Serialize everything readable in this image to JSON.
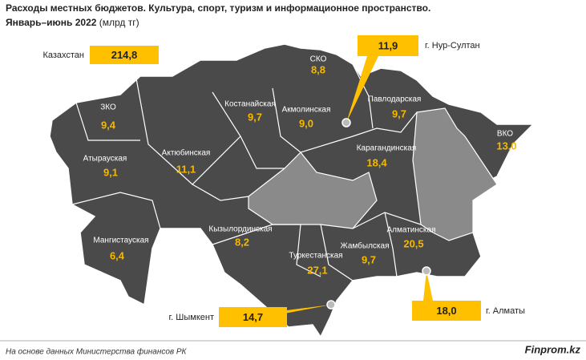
{
  "chart_data": {
    "type": "map",
    "title": "Расходы местных бюджетов. Культура, спорт, туризм и информационное пространство.",
    "subtitle": "Январь–июнь 2022",
    "unit": "(млрд тг)",
    "categories": [
      "ЗКО",
      "Атырауская",
      "Актюбинская",
      "Мангистауская",
      "Костанайская",
      "Акмолинская",
      "СКО",
      "Павлодарская",
      "Карагандинская",
      "ВКО",
      "Кызылординская",
      "Туркестанская",
      "Жамбылская",
      "Алматинская"
    ],
    "values": [
      9.4,
      9.1,
      11.1,
      6.4,
      9.7,
      9.0,
      8.8,
      9.7,
      18.4,
      13.0,
      8.2,
      27.1,
      9.7,
      20.5
    ],
    "value_labels": [
      "9,4",
      "9,1",
      "11,1",
      "6,4",
      "9,7",
      "9,0",
      "8,8",
      "9,7",
      "18,4",
      "13,0",
      "8,2",
      "27,1",
      "9,7",
      "20,5"
    ],
    "highlights": {
      "categories": [
        "Казахстан",
        "г. Нур-Султан",
        "г. Шымкент",
        "г. Алматы"
      ],
      "values": [
        214.8,
        11.9,
        14.7,
        18.0
      ],
      "value_labels": [
        "214,8",
        "11,9",
        "14,7",
        "18,0"
      ]
    }
  },
  "source": "На основе данных Министерства финансов РК",
  "watermark": "Finprom.kz"
}
